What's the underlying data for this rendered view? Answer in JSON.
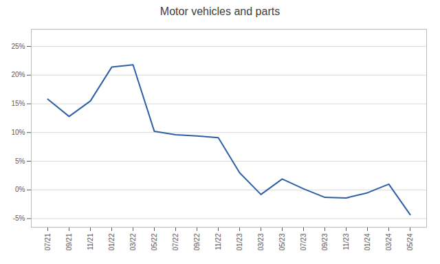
{
  "chart_data": {
    "type": "line",
    "title": "Motor vehicles and parts",
    "categories": [
      "07/21",
      "09/21",
      "11/21",
      "01/22",
      "03/22",
      "05/22",
      "07/22",
      "09/22",
      "11/22",
      "01/23",
      "03/23",
      "05/23",
      "07/23",
      "09/23",
      "11/23",
      "01/24",
      "03/24",
      "05/24"
    ],
    "values": [
      0.158,
      0.128,
      0.155,
      0.214,
      0.218,
      0.102,
      0.096,
      0.094,
      0.091,
      0.03,
      -0.008,
      0.019,
      0.002,
      -0.013,
      -0.014,
      -0.005,
      0.01,
      -0.043
    ],
    "color": "#2e5fa3",
    "ylim": [
      -0.065,
      0.28
    ],
    "yticks": [
      {
        "value": -0.05,
        "label": "-5%"
      },
      {
        "value": 0.0,
        "label": "0%"
      },
      {
        "value": 0.05,
        "label": "5%"
      },
      {
        "value": 0.1,
        "label": "10%"
      },
      {
        "value": 0.15,
        "label": "15%"
      },
      {
        "value": 0.2,
        "label": "20%"
      },
      {
        "value": 0.25,
        "label": "25%"
      }
    ],
    "grid": true
  }
}
